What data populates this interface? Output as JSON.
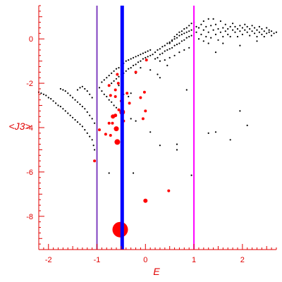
{
  "chart_data": {
    "type": "scatter",
    "title": "",
    "xlabel": "E",
    "ylabel": "<J3>",
    "xlim": [
      -2.2,
      2.7
    ],
    "ylim": [
      -9.5,
      1.5
    ],
    "grid": false,
    "axis_color": "#e00000",
    "x_ticks": [
      {
        "value": -2,
        "label": "-2"
      },
      {
        "value": -1,
        "label": "-1"
      },
      {
        "value": 0,
        "label": "0"
      },
      {
        "value": 1,
        "label": "1"
      },
      {
        "value": 2,
        "label": "2"
      }
    ],
    "y_ticks": [
      {
        "value": 0,
        "label": "0"
      },
      {
        "value": -2,
        "label": "-2"
      },
      {
        "value": -4,
        "label": "-4"
      },
      {
        "value": -6,
        "label": "-6"
      },
      {
        "value": -8,
        "label": "-8"
      }
    ],
    "vertical_lines": [
      {
        "x": -1.0,
        "color": "#8040c0"
      },
      {
        "x": -0.48,
        "color": "#0000ff"
      },
      {
        "x": 1.0,
        "color": "#ff00ff"
      }
    ],
    "series": [
      {
        "color": "#000000",
        "points": [
          [
            -2.2,
            -2.4
          ],
          [
            -2.15,
            -2.45
          ],
          [
            -2.1,
            -2.5
          ],
          [
            -2.05,
            -2.55
          ],
          [
            -2.0,
            -2.65
          ],
          [
            -1.95,
            -2.7
          ],
          [
            -1.9,
            -2.8
          ],
          [
            -1.85,
            -2.9
          ],
          [
            -1.8,
            -3.0
          ],
          [
            -1.75,
            -3.05
          ],
          [
            -1.7,
            -3.15
          ],
          [
            -1.65,
            -3.25
          ],
          [
            -1.6,
            -3.35
          ],
          [
            -1.55,
            -3.45
          ],
          [
            -1.5,
            -3.55
          ],
          [
            -1.45,
            -3.65
          ],
          [
            -1.4,
            -3.75
          ],
          [
            -1.35,
            -3.85
          ],
          [
            -1.3,
            -3.95
          ],
          [
            -1.25,
            -4.1
          ],
          [
            -1.2,
            -4.25
          ],
          [
            -1.15,
            -4.4
          ],
          [
            -1.1,
            -4.55
          ],
          [
            -1.07,
            -4.8
          ],
          [
            -1.05,
            -5.0
          ],
          [
            -1.75,
            -2.25
          ],
          [
            -1.7,
            -2.3
          ],
          [
            -1.65,
            -2.35
          ],
          [
            -1.6,
            -2.45
          ],
          [
            -1.55,
            -2.55
          ],
          [
            -1.5,
            -2.65
          ],
          [
            -1.45,
            -2.75
          ],
          [
            -1.4,
            -2.85
          ],
          [
            -1.35,
            -2.95
          ],
          [
            -1.3,
            -3.05
          ],
          [
            -1.25,
            -3.15
          ],
          [
            -1.2,
            -3.3
          ],
          [
            -1.15,
            -3.45
          ],
          [
            -1.1,
            -3.6
          ],
          [
            -1.05,
            -3.8
          ],
          [
            -1.4,
            -2.3
          ],
          [
            -1.35,
            -2.2
          ],
          [
            -1.3,
            -2.15
          ],
          [
            -1.25,
            -2.25
          ],
          [
            -1.2,
            -2.35
          ],
          [
            -1.15,
            -2.5
          ],
          [
            -1.1,
            -2.65
          ],
          [
            -0.9,
            -1.95
          ],
          [
            -0.85,
            -1.85
          ],
          [
            -0.8,
            -1.75
          ],
          [
            -0.75,
            -1.65
          ],
          [
            -0.7,
            -1.55
          ],
          [
            -0.65,
            -1.45
          ],
          [
            -0.6,
            -1.35
          ],
          [
            -0.55,
            -1.3
          ],
          [
            -0.5,
            -1.2
          ],
          [
            -0.45,
            -1.1
          ],
          [
            -0.4,
            -1.0
          ],
          [
            -0.35,
            -0.95
          ],
          [
            -0.3,
            -0.9
          ],
          [
            -0.25,
            -0.85
          ],
          [
            -0.2,
            -0.8
          ],
          [
            -0.15,
            -0.75
          ],
          [
            -0.1,
            -0.7
          ],
          [
            -0.05,
            -0.65
          ],
          [
            0.0,
            -0.6
          ],
          [
            0.05,
            -0.55
          ],
          [
            0.1,
            -0.5
          ],
          [
            -0.95,
            -2.2
          ],
          [
            -0.9,
            -2.35
          ],
          [
            -0.85,
            -2.5
          ],
          [
            -0.8,
            -2.6
          ],
          [
            -0.75,
            -2.75
          ],
          [
            -0.7,
            -2.85
          ],
          [
            -0.65,
            -3.0
          ],
          [
            -0.6,
            -3.1
          ],
          [
            -0.7,
            -2.0
          ],
          [
            -0.65,
            -1.9
          ],
          [
            -0.6,
            -1.8
          ],
          [
            -0.55,
            -1.7
          ],
          [
            -0.5,
            -1.6
          ],
          [
            -0.45,
            -1.55
          ],
          [
            -0.4,
            -1.45
          ],
          [
            -0.35,
            -1.35
          ],
          [
            -0.3,
            -1.3
          ],
          [
            -0.25,
            -1.2
          ],
          [
            -0.2,
            -1.15
          ],
          [
            -0.15,
            -1.05
          ],
          [
            -0.1,
            -1.0
          ],
          [
            -0.05,
            -0.9
          ],
          [
            0.0,
            -0.85
          ],
          [
            0.05,
            -0.8
          ],
          [
            0.1,
            -0.75
          ],
          [
            0.15,
            -0.7
          ],
          [
            0.2,
            -0.6
          ],
          [
            0.25,
            -0.5
          ],
          [
            0.3,
            -0.45
          ],
          [
            0.35,
            -0.35
          ],
          [
            0.4,
            -0.3
          ],
          [
            0.45,
            -0.2
          ],
          [
            0.5,
            -0.15
          ],
          [
            0.55,
            -0.05
          ],
          [
            0.6,
            0.0
          ],
          [
            0.65,
            0.05
          ],
          [
            0.7,
            0.15
          ],
          [
            0.75,
            0.2
          ],
          [
            0.8,
            0.25
          ],
          [
            0.85,
            0.3
          ],
          [
            0.9,
            0.35
          ],
          [
            0.95,
            0.4
          ],
          [
            0.2,
            -0.9
          ],
          [
            0.25,
            -0.85
          ],
          [
            0.3,
            -0.7
          ],
          [
            0.35,
            -0.65
          ],
          [
            0.4,
            -0.55
          ],
          [
            0.45,
            -0.5
          ],
          [
            0.5,
            -0.45
          ],
          [
            0.55,
            -0.4
          ],
          [
            0.6,
            -0.3
          ],
          [
            0.65,
            -0.25
          ],
          [
            0.7,
            -0.2
          ],
          [
            0.75,
            -0.1
          ],
          [
            0.8,
            -0.05
          ],
          [
            0.85,
            0.05
          ],
          [
            0.9,
            0.1
          ],
          [
            0.95,
            0.15
          ],
          [
            0.3,
            -1.0
          ],
          [
            0.4,
            -0.95
          ],
          [
            0.5,
            -0.85
          ],
          [
            0.6,
            -0.75
          ],
          [
            0.7,
            -0.6
          ],
          [
            0.8,
            -0.5
          ],
          [
            0.9,
            -0.4
          ],
          [
            0.5,
            -0.2
          ],
          [
            0.55,
            -0.1
          ],
          [
            0.6,
            0.1
          ],
          [
            0.65,
            0.2
          ],
          [
            0.7,
            0.3
          ],
          [
            0.75,
            0.35
          ],
          [
            0.8,
            0.45
          ],
          [
            0.85,
            0.5
          ],
          [
            0.9,
            0.6
          ],
          [
            0.95,
            0.7
          ],
          [
            1.0,
            0.75
          ],
          [
            1.0,
            0.45
          ],
          [
            1.05,
            0.3
          ],
          [
            1.05,
            0.55
          ],
          [
            1.1,
            0.0
          ],
          [
            1.1,
            0.5
          ],
          [
            1.15,
            0.2
          ],
          [
            1.15,
            0.65
          ],
          [
            1.2,
            -0.1
          ],
          [
            1.2,
            0.4
          ],
          [
            1.2,
            0.8
          ],
          [
            1.25,
            0.1
          ],
          [
            1.25,
            0.55
          ],
          [
            1.3,
            0.3
          ],
          [
            1.3,
            0.9
          ],
          [
            1.3,
            -0.2
          ],
          [
            1.35,
            0.6
          ],
          [
            1.35,
            0.05
          ],
          [
            1.4,
            0.4
          ],
          [
            1.4,
            0.9
          ],
          [
            1.45,
            0.2
          ],
          [
            1.45,
            0.65
          ],
          [
            1.5,
            0.45
          ],
          [
            1.5,
            -0.05
          ],
          [
            1.55,
            0.3
          ],
          [
            1.55,
            0.8
          ],
          [
            1.6,
            0.5
          ],
          [
            1.6,
            0.1
          ],
          [
            1.65,
            0.35
          ],
          [
            1.65,
            0.65
          ],
          [
            1.7,
            0.45
          ],
          [
            1.7,
            0.2
          ],
          [
            1.75,
            0.55
          ],
          [
            1.75,
            0.1
          ],
          [
            1.8,
            0.4
          ],
          [
            1.8,
            0.7
          ],
          [
            1.85,
            0.3
          ],
          [
            1.85,
            0.55
          ],
          [
            1.9,
            0.45
          ],
          [
            1.9,
            0.1
          ],
          [
            1.95,
            0.6
          ],
          [
            1.95,
            0.35
          ],
          [
            2.0,
            0.5
          ],
          [
            2.0,
            0.2
          ],
          [
            2.05,
            0.4
          ],
          [
            2.05,
            0.65
          ],
          [
            2.1,
            0.3
          ],
          [
            2.1,
            0.55
          ],
          [
            2.15,
            0.45
          ],
          [
            2.15,
            0.15
          ],
          [
            2.2,
            0.35
          ],
          [
            2.2,
            0.6
          ],
          [
            2.25,
            0.25
          ],
          [
            2.25,
            0.5
          ],
          [
            2.3,
            0.4
          ],
          [
            2.3,
            0.1
          ],
          [
            2.35,
            0.3
          ],
          [
            2.35,
            0.55
          ],
          [
            2.4,
            0.45
          ],
          [
            2.4,
            0.2
          ],
          [
            2.45,
            0.35
          ],
          [
            2.45,
            0.1
          ],
          [
            2.5,
            0.5
          ],
          [
            2.5,
            0.25
          ],
          [
            2.55,
            0.3
          ],
          [
            2.55,
            0.4
          ],
          [
            2.6,
            0.15
          ],
          [
            2.6,
            0.35
          ],
          [
            2.65,
            0.25
          ],
          [
            2.7,
            0.3
          ],
          [
            1.45,
            -0.6
          ],
          [
            1.6,
            -0.2
          ],
          [
            1.95,
            -0.3
          ],
          [
            2.3,
            -0.1
          ],
          [
            -0.55,
            -2.1
          ],
          [
            -0.45,
            -2.5
          ],
          [
            -0.35,
            -2.6
          ],
          [
            -0.3,
            -2.45
          ],
          [
            -0.2,
            -1.55
          ],
          [
            -0.1,
            -1.3
          ],
          [
            0.1,
            -1.4
          ],
          [
            0.25,
            -1.6
          ],
          [
            0.3,
            -1.75
          ],
          [
            0.45,
            -1.2
          ],
          [
            -0.45,
            -3.3
          ],
          [
            -0.3,
            -3.6
          ],
          [
            0.1,
            -4.2
          ],
          [
            0.3,
            -4.8
          ],
          [
            0.65,
            -4.75
          ],
          [
            0.85,
            -2.3
          ],
          [
            1.3,
            -4.25
          ],
          [
            1.45,
            -4.2
          ],
          [
            1.95,
            -3.25
          ],
          [
            2.1,
            -3.9
          ],
          [
            1.75,
            -4.55
          ],
          [
            -0.75,
            -6.05
          ],
          [
            -0.25,
            -6.05
          ],
          [
            0.65,
            -5.0
          ],
          [
            0.95,
            -6.15
          ],
          [
            -0.2,
            -3.7
          ]
        ]
      },
      {
        "color": "#ff0000",
        "points": [
          [
            -0.52,
            -8.6,
            11
          ],
          [
            -0.48,
            -3.3,
            4
          ],
          [
            -0.58,
            -4.65,
            4
          ],
          [
            -0.6,
            -4.05,
            3.5
          ],
          [
            -0.67,
            -3.5,
            3
          ],
          [
            -0.62,
            -3.45,
            2.5
          ],
          [
            0.0,
            -7.3,
            3
          ],
          [
            -0.68,
            -3.8,
            2
          ],
          [
            -0.75,
            -3.8,
            2
          ],
          [
            -0.82,
            -4.3,
            2
          ],
          [
            -0.95,
            -4.1,
            2
          ],
          [
            -0.72,
            -4.35,
            2
          ],
          [
            -0.5,
            -2.8,
            2
          ],
          [
            -0.56,
            -2.0,
            2
          ],
          [
            -0.58,
            -1.6,
            2
          ],
          [
            -0.62,
            -2.6,
            2
          ],
          [
            -0.55,
            -3.2,
            2
          ],
          [
            -0.45,
            -3.7,
            2
          ],
          [
            -0.38,
            -2.45,
            2
          ],
          [
            -0.33,
            -2.9,
            2
          ],
          [
            -0.2,
            -1.5,
            2
          ],
          [
            -0.1,
            -2.65,
            2
          ],
          [
            0.02,
            -0.95,
            2
          ],
          [
            0.0,
            -3.25,
            2
          ],
          [
            -0.05,
            -3.6,
            2
          ],
          [
            -0.02,
            -2.4,
            2
          ],
          [
            -0.75,
            -2.1,
            2
          ],
          [
            -0.62,
            -2.3,
            2
          ],
          [
            -0.72,
            -2.55,
            2
          ],
          [
            -1.05,
            -5.5,
            2
          ],
          [
            0.48,
            -6.85,
            2
          ]
        ]
      }
    ]
  }
}
